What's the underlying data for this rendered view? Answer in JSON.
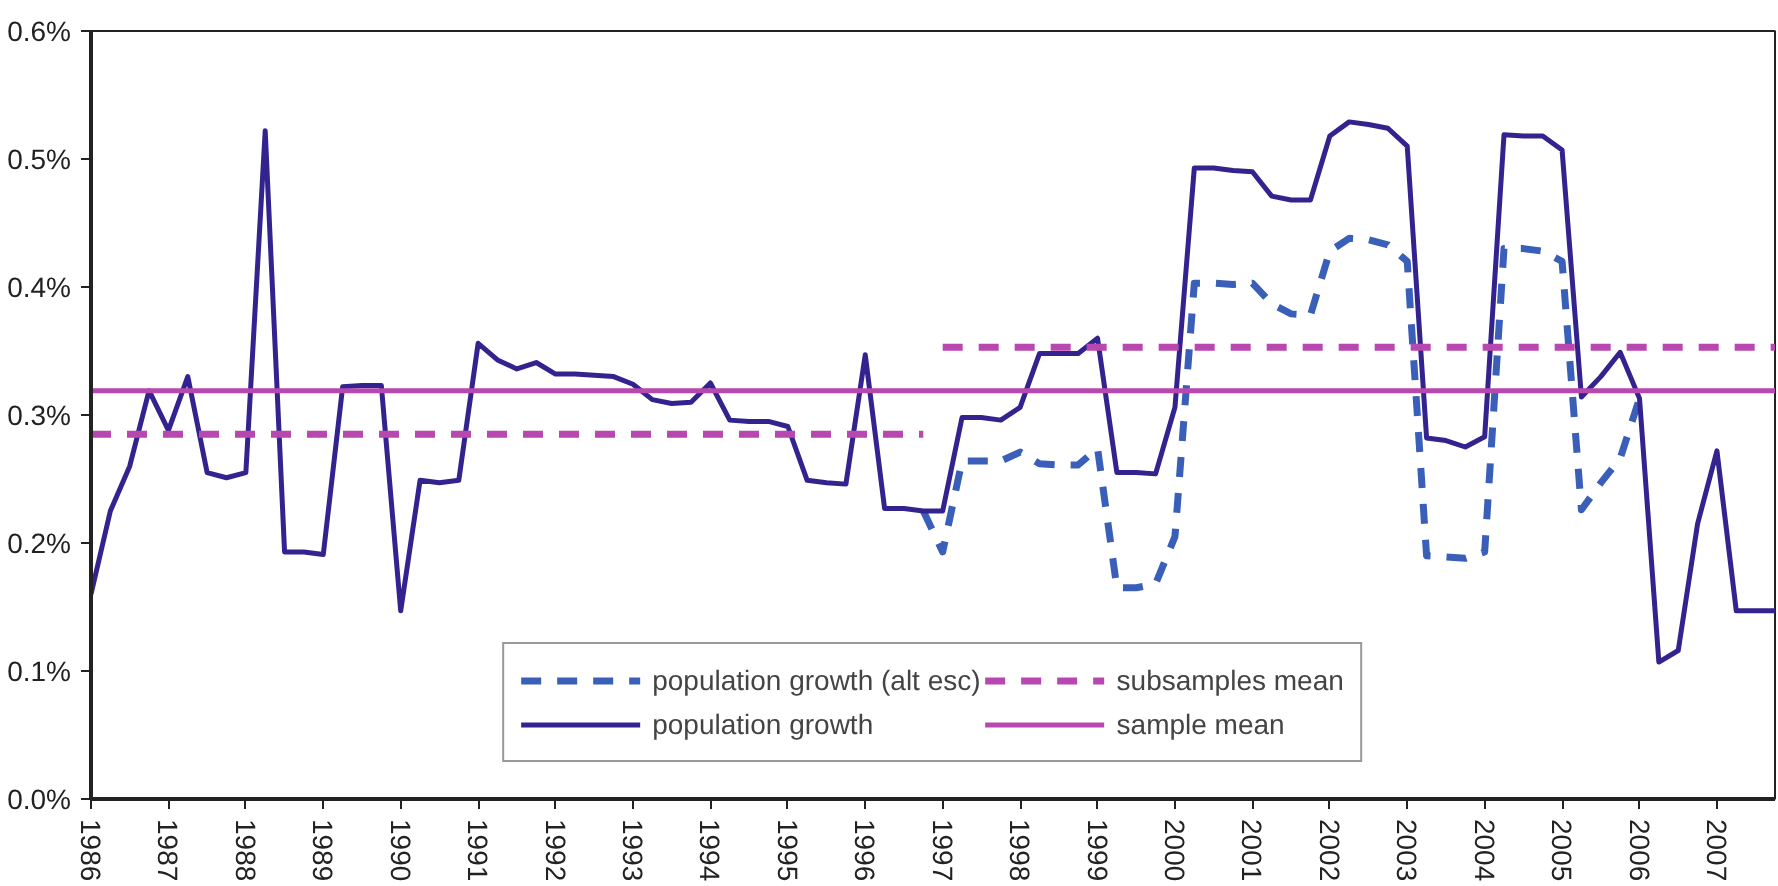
{
  "chart_data": {
    "type": "line",
    "x": [
      1986,
      1986.25,
      1986.5,
      1986.75,
      1987,
      1987.25,
      1987.5,
      1987.75,
      1988,
      1988.25,
      1988.5,
      1988.75,
      1989,
      1989.25,
      1989.5,
      1989.75,
      1990,
      1990.25,
      1990.5,
      1990.75,
      1991,
      1991.25,
      1991.5,
      1991.75,
      1992,
      1992.25,
      1992.5,
      1992.75,
      1993,
      1993.25,
      1993.5,
      1993.75,
      1994,
      1994.25,
      1994.5,
      1994.75,
      1995,
      1995.25,
      1995.5,
      1995.75,
      1996,
      1996.25,
      1996.5,
      1996.75,
      1997,
      1997.25,
      1997.5,
      1997.75,
      1998,
      1998.25,
      1998.5,
      1998.75,
      1999,
      1999.25,
      1999.5,
      1999.75,
      2000,
      2000.25,
      2000.5,
      2000.75,
      2001,
      2001.25,
      2001.5,
      2001.75,
      2002,
      2002.25,
      2002.5,
      2002.75,
      2003,
      2003.25,
      2003.5,
      2003.75,
      2004,
      2004.25,
      2004.5,
      2004.75,
      2005,
      2005.25,
      2005.5,
      2005.75,
      2006,
      2006.25,
      2006.5,
      2006.75,
      2007,
      2007.25,
      2007.5,
      2007.75
    ],
    "series": [
      {
        "name": "population growth (alt esc)",
        "color": "#3a5fb8",
        "line_style": "dashed",
        "x": [
          1996.75,
          1997,
          1997.25,
          1997.5,
          1997.75,
          1998,
          1998.25,
          1998.5,
          1998.75,
          1999,
          1999.25,
          1999.5,
          1999.75,
          2000,
          2000.25,
          2000.5,
          2000.75,
          2001,
          2001.25,
          2001.5,
          2001.75,
          2002,
          2002.25,
          2002.5,
          2002.75,
          2003,
          2003.25,
          2003.5,
          2003.75,
          2004,
          2004.25,
          2004.5,
          2004.75,
          2005,
          2005.25,
          2005.5,
          2005.75,
          2006
        ],
        "values": [
          0.225,
          0.193,
          0.264,
          0.264,
          0.264,
          0.271,
          0.262,
          0.261,
          0.261,
          0.274,
          0.165,
          0.165,
          0.168,
          0.205,
          0.403,
          0.403,
          0.402,
          0.403,
          0.387,
          0.379,
          0.378,
          0.428,
          0.438,
          0.437,
          0.433,
          0.42,
          0.19,
          0.189,
          0.188,
          0.193,
          0.43,
          0.43,
          0.428,
          0.42,
          0.226,
          0.247,
          0.266,
          0.313
        ]
      },
      {
        "name": "population growth",
        "color": "#33238f",
        "line_style": "solid",
        "values": [
          0.16,
          0.225,
          0.26,
          0.319,
          0.288,
          0.33,
          0.255,
          0.251,
          0.255,
          0.522,
          0.193,
          0.193,
          0.191,
          0.322,
          0.323,
          0.323,
          0.147,
          0.249,
          0.247,
          0.249,
          0.356,
          0.343,
          0.336,
          0.341,
          0.332,
          0.332,
          0.331,
          0.33,
          0.324,
          0.312,
          0.309,
          0.31,
          0.325,
          0.296,
          0.295,
          0.295,
          0.291,
          0.249,
          0.247,
          0.246,
          0.347,
          0.227,
          0.227,
          0.225,
          0.225,
          0.298,
          0.298,
          0.296,
          0.306,
          0.348,
          0.348,
          0.348,
          0.36,
          0.255,
          0.255,
          0.254,
          0.306,
          0.493,
          0.493,
          0.491,
          0.49,
          0.471,
          0.468,
          0.468,
          0.518,
          0.529,
          0.527,
          0.524,
          0.51,
          0.282,
          0.28,
          0.275,
          0.283,
          0.519,
          0.518,
          0.518,
          0.507,
          0.314,
          0.33,
          0.349,
          0.313,
          0.107,
          0.116,
          0.215,
          0.272,
          0.147,
          0.147,
          0.147
        ]
      },
      {
        "name": "subsamples mean",
        "color": "#b848b0",
        "line_style": "dashed",
        "x": [
          1986,
          1996.75,
          1996.875,
          1997,
          2007.75
        ],
        "values": [
          0.285,
          0.285,
          null,
          0.353,
          0.353
        ]
      },
      {
        "name": "sample mean",
        "color": "#b848b0",
        "line_style": "solid",
        "x": [
          1986,
          2007.75
        ],
        "values": [
          0.319,
          0.319
        ]
      }
    ],
    "xlim": [
      1986,
      2007.75
    ],
    "xticks": [
      1986,
      1987,
      1988,
      1989,
      1990,
      1991,
      1992,
      1993,
      1994,
      1995,
      1996,
      1997,
      1998,
      1999,
      2000,
      2001,
      2002,
      2003,
      2004,
      2005,
      2006,
      2007
    ],
    "ylim": [
      0,
      0.6
    ],
    "yticks": [
      {
        "value": 0,
        "label": "0.0%"
      },
      {
        "value": 0.1,
        "label": "0.1%"
      },
      {
        "value": 0.2,
        "label": "0.2%"
      },
      {
        "value": 0.3,
        "label": "0.3%"
      },
      {
        "value": 0.4,
        "label": "0.4%"
      },
      {
        "value": 0.5,
        "label": "0.5%"
      },
      {
        "value": 0.6,
        "label": "0.6%"
      }
    ],
    "grid": false,
    "legend": "bottom"
  }
}
